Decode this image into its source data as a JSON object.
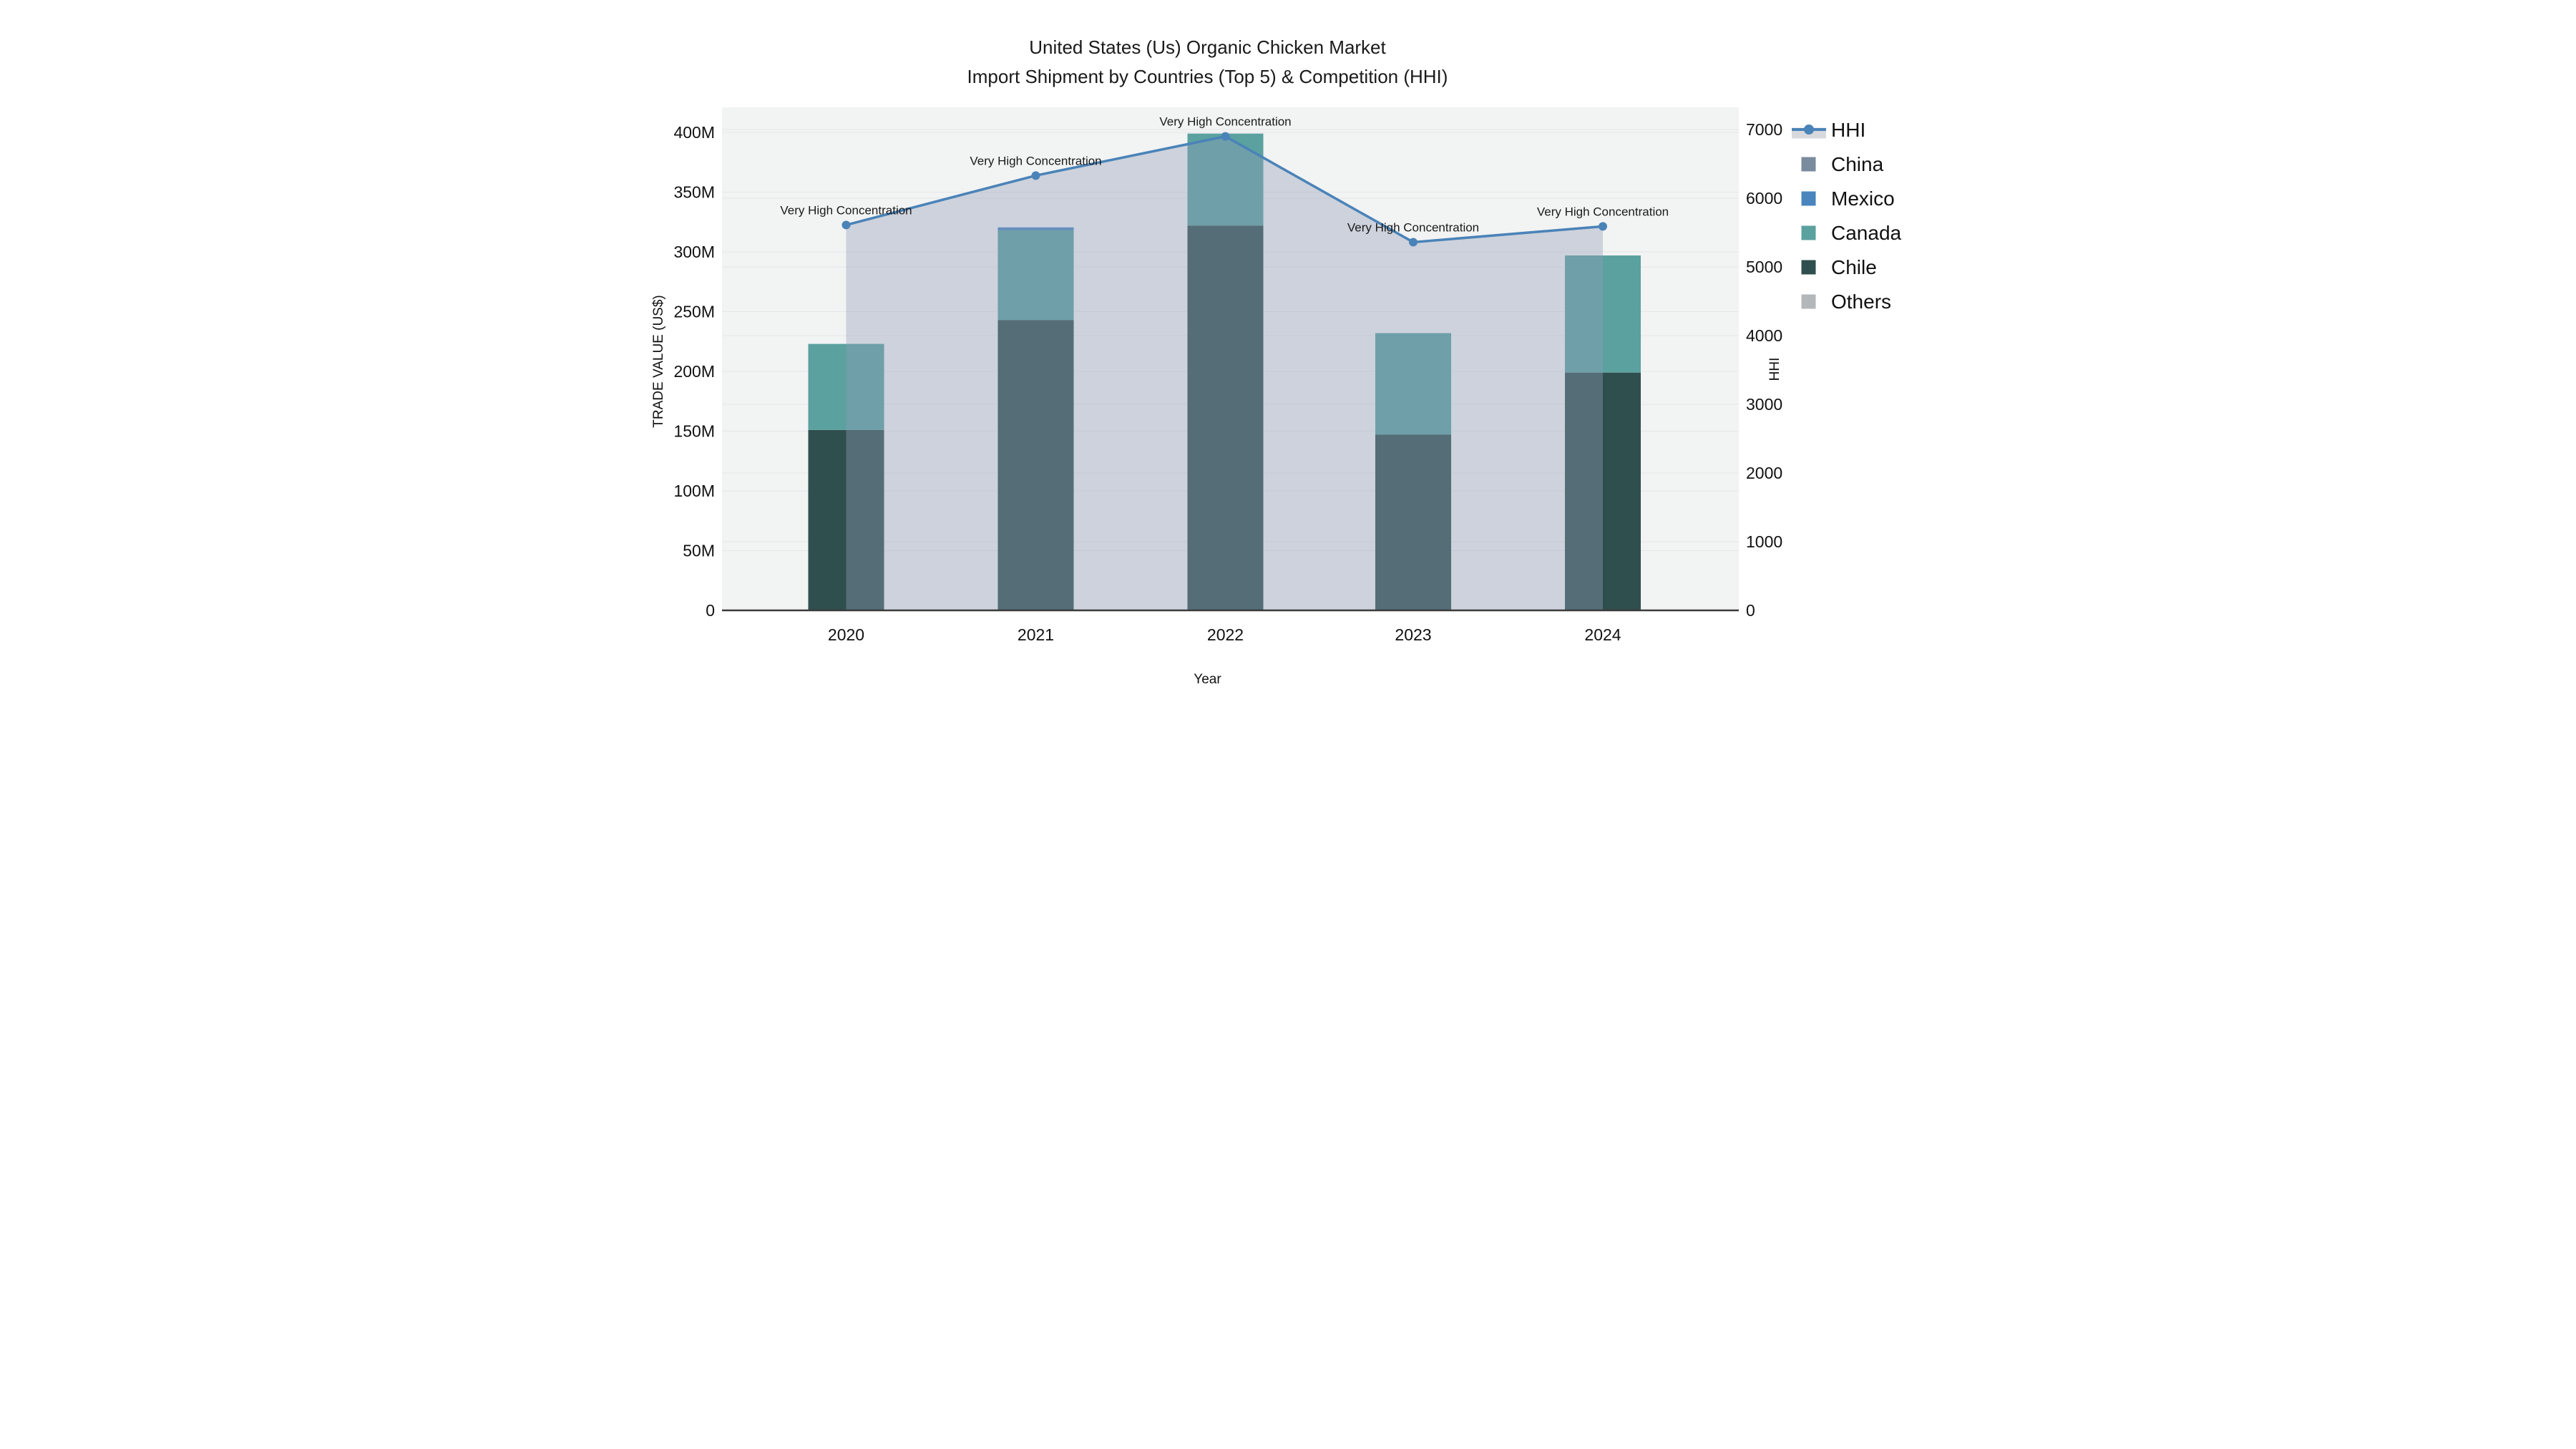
{
  "title": {
    "line1": "United States (Us) Organic Chicken Market",
    "line2": "Import Shipment by Countries (Top 5) & Competition (HHI)"
  },
  "axes": {
    "x": {
      "title": "Year"
    },
    "y_left": {
      "title": "TRADE VALUE (US$)"
    },
    "y_right": {
      "title": "HHI"
    }
  },
  "colors": {
    "hhi_line": "#4a83b8",
    "hhi_area": "rgba(145,158,183,0.38)",
    "china": "#7a8b9e",
    "mexico": "#4a85bd",
    "canada": "#5ba1a0",
    "chile": "#2f4f4e",
    "others": "#b4b7ba",
    "plot_bg": "#f2f3f3",
    "gridline": "#e5e6e8",
    "axis_line": "#3b3b3b",
    "legend_band": "#d7d9dd"
  },
  "chart_data": {
    "type": "bar",
    "subtype": "stacked-bars-with-line",
    "categories": [
      "2020",
      "2021",
      "2022",
      "2023",
      "2024"
    ],
    "series": [
      {
        "name": "Chile",
        "axis": "left",
        "values": [
          151,
          243,
          322,
          147,
          199
        ]
      },
      {
        "name": "Canada",
        "axis": "left",
        "values": [
          72,
          75,
          77,
          85,
          98
        ]
      },
      {
        "name": "Mexico",
        "axis": "left",
        "values": [
          0,
          2.5,
          0,
          0,
          0
        ]
      },
      {
        "name": "China",
        "axis": "left",
        "values": [
          0,
          0,
          0,
          0,
          0
        ]
      },
      {
        "name": "Others",
        "axis": "left",
        "values": [
          0,
          0,
          0,
          0,
          0
        ]
      }
    ],
    "line_series": {
      "name": "HHI",
      "axis": "right",
      "values": [
        5610,
        6330,
        6900,
        5360,
        5590
      ],
      "area_fill": true,
      "point_annotations": [
        "Very High Concentration",
        "Very High Concentration",
        "Very High Concentration",
        "Very High Concentration",
        "Very High Concentration"
      ]
    },
    "title": "United States (Us) Organic Chicken Market Import Shipment by Countries (Top 5) & Competition (HHI)",
    "xlabel": "Year",
    "ylabel_left": "TRADE VALUE (US$)",
    "ylabel_right": "HHI",
    "y_left_axis": {
      "min": 0,
      "max": 400,
      "unit": "M",
      "tick_values": [
        0,
        50,
        100,
        150,
        200,
        250,
        300,
        350,
        400
      ],
      "tick_labels": [
        "0",
        "50M",
        "100M",
        "150M",
        "200M",
        "250M",
        "300M",
        "350M",
        "400M"
      ]
    },
    "y_right_axis": {
      "min": 0,
      "max": 7000,
      "tick_values": [
        0,
        1000,
        2000,
        3000,
        4000,
        5000,
        6000,
        7000
      ],
      "tick_labels": [
        "0",
        "1000",
        "2000",
        "3000",
        "4000",
        "5000",
        "6000",
        "7000"
      ]
    },
    "grid": true,
    "legend_position": "right",
    "legend": [
      {
        "label": "HHI",
        "type": "line-marker",
        "color_key": "hhi_line"
      },
      {
        "label": "China",
        "type": "swatch",
        "color_key": "china"
      },
      {
        "label": "Mexico",
        "type": "swatch",
        "color_key": "mexico"
      },
      {
        "label": "Canada",
        "type": "swatch",
        "color_key": "canada"
      },
      {
        "label": "Chile",
        "type": "swatch",
        "color_key": "chile"
      },
      {
        "label": "Others",
        "type": "swatch",
        "color_key": "others"
      }
    ]
  }
}
